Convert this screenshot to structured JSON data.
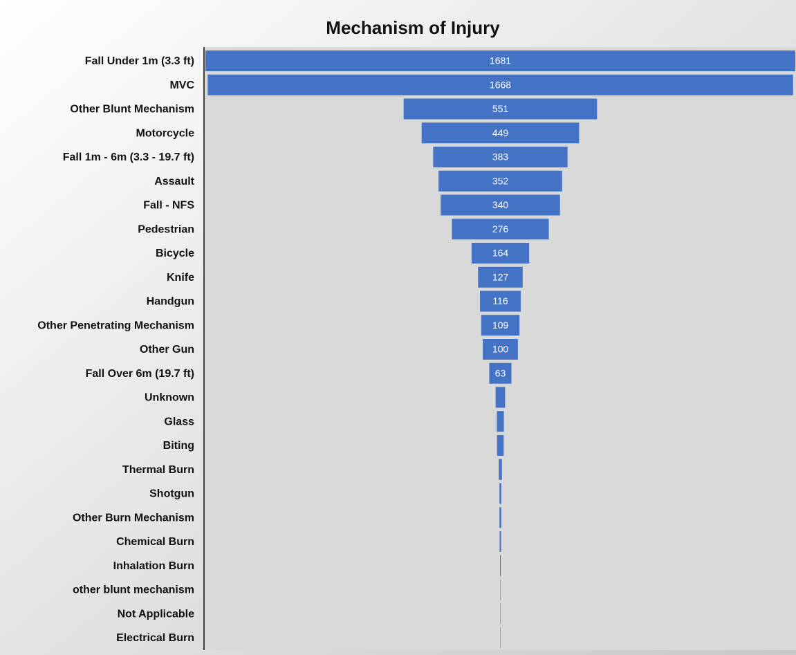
{
  "chart_data": {
    "type": "funnel",
    "title": "Mechanism of Injury",
    "categories": [
      "Fall Under 1m (3.3 ft)",
      "MVC",
      "Other Blunt Mechanism",
      "Motorcycle",
      "Fall 1m - 6m (3.3 - 19.7 ft)",
      "Assault",
      "Fall - NFS",
      "Pedestrian",
      "Bicycle",
      "Knife",
      "Handgun",
      "Other Penetrating Mechanism",
      "Other Gun",
      "Fall Over 6m (19.7 ft)",
      "Unknown",
      "Glass",
      "Biting",
      "Thermal Burn",
      "Shotgun",
      "Other Burn Mechanism",
      "Chemical Burn",
      "Inhalation Burn",
      "other blunt mechanism",
      "Not Applicable",
      "Electrical Burn"
    ],
    "values": [
      1681,
      1668,
      551,
      449,
      383,
      352,
      340,
      276,
      164,
      127,
      116,
      109,
      100,
      63,
      27,
      20,
      19,
      9,
      5,
      5,
      4,
      2,
      1,
      1,
      1
    ],
    "color": "#4472c4"
  }
}
